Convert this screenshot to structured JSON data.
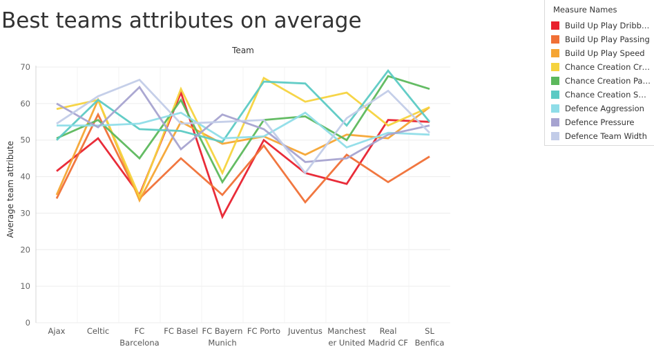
{
  "chart_data": {
    "type": "line",
    "title": "Best teams attributes on average",
    "axis_header": "Team",
    "ylabel": "Average team attribute",
    "ylim": [
      0,
      70
    ],
    "yticks": [
      0,
      10,
      20,
      30,
      40,
      50,
      60,
      70
    ],
    "categories": [
      [
        "Ajax"
      ],
      [
        "Celtic"
      ],
      [
        "FC",
        "Barcelona"
      ],
      [
        "FC Basel"
      ],
      [
        "FC Bayern",
        "Munich"
      ],
      [
        "FC Porto"
      ],
      [
        "Juventus"
      ],
      [
        "Manchest",
        "er United"
      ],
      [
        "Real",
        "Madrid CF"
      ],
      [
        "SL",
        "Benfica"
      ]
    ],
    "grid": "horizontal",
    "legend": {
      "title": "Measure Names",
      "placement": "right"
    },
    "series": [
      {
        "name": "Build Up Play Dribbli..",
        "color": "#e8212e",
        "values": [
          41.5,
          50.5,
          35,
          63,
          29,
          50,
          41,
          38,
          55.5,
          55
        ]
      },
      {
        "name": "Build Up Play Passing",
        "color": "#f07036",
        "values": [
          34,
          57,
          34,
          45,
          35,
          48.5,
          33,
          46,
          38.5,
          45.5
        ]
      },
      {
        "name": "Build Up Play Speed",
        "color": "#f5a533",
        "values": [
          35,
          61,
          33.5,
          55,
          49,
          51,
          46,
          51.5,
          50.5,
          59
        ]
      },
      {
        "name": "Chance Creation Cro..",
        "color": "#f5d33e",
        "values": [
          58.5,
          61,
          34.5,
          64,
          41,
          67,
          60.5,
          63,
          54,
          59
        ]
      },
      {
        "name": "Chance Creation Pas..",
        "color": "#5cb85c",
        "values": [
          50.5,
          55.5,
          45,
          61,
          38.5,
          55.5,
          56.5,
          50,
          67.5,
          64
        ]
      },
      {
        "name": "Chance Creation Sho..",
        "color": "#5ccac4",
        "values": [
          50,
          61,
          53,
          52.5,
          49.5,
          66,
          65.5,
          54,
          69,
          55
        ]
      },
      {
        "name": "Defence Aggression",
        "color": "#8fdde8",
        "values": [
          54,
          54,
          54.5,
          57.5,
          50.5,
          51,
          57.5,
          48,
          52,
          51.5
        ]
      },
      {
        "name": "Defence Pressure",
        "color": "#a6a3d0",
        "values": [
          60,
          53.5,
          64.5,
          47.5,
          57,
          53,
          44,
          45,
          51.5,
          54
        ]
      },
      {
        "name": "Defence Team Width",
        "color": "#c2cce8",
        "values": [
          54.5,
          62,
          66.5,
          54.5,
          55,
          55.5,
          41,
          56,
          63.5,
          52
        ]
      }
    ]
  }
}
